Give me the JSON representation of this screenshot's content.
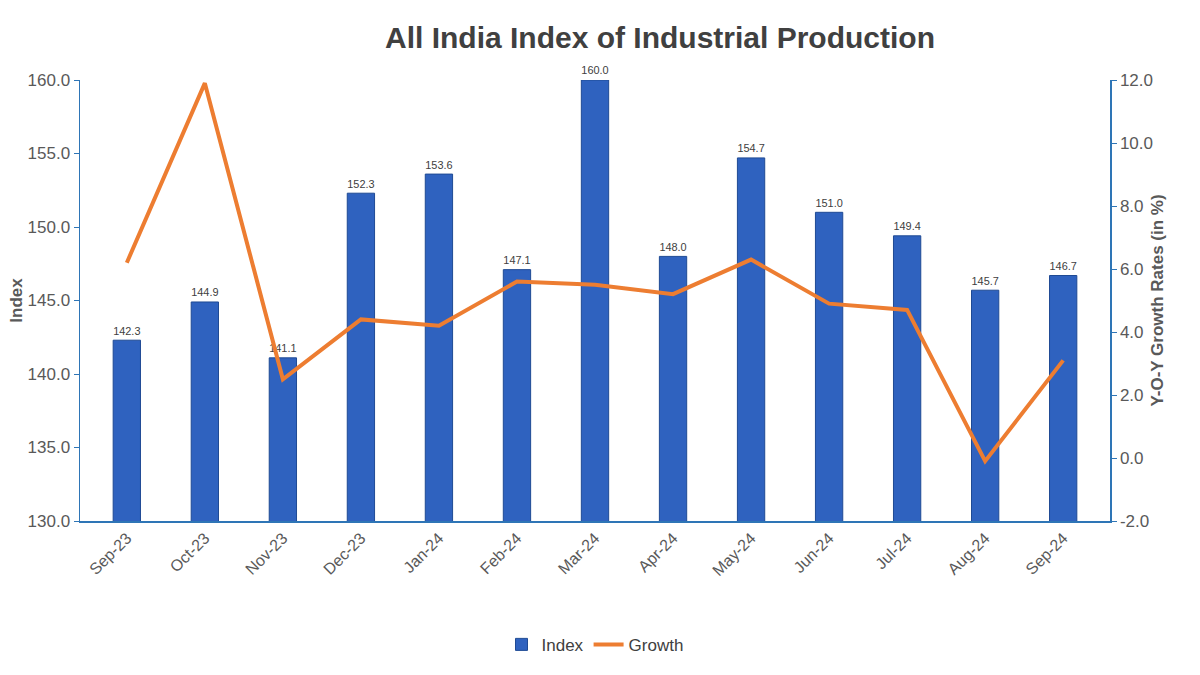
{
  "chart_data": {
    "type": "bar",
    "title": "All India Index of Industrial Production",
    "categories": [
      "Sep-23",
      "Oct-23",
      "Nov-23",
      "Dec-23",
      "Jan-24",
      "Feb-24",
      "Mar-24",
      "Apr-24",
      "May-24",
      "Jun-24",
      "Jul-24",
      "Aug-24",
      "Sep-24"
    ],
    "series": [
      {
        "name": "Index",
        "type": "bar",
        "color": "#2f62bf",
        "data_labels": true,
        "values": [
          142.3,
          144.9,
          141.1,
          152.3,
          153.6,
          147.1,
          160.0,
          148.0,
          154.7,
          151.0,
          149.4,
          145.7,
          146.7
        ],
        "value_labels": [
          "142.3",
          "144.9",
          "141.1",
          "152.3",
          "153.6",
          "147.1",
          "160.0",
          "148.0",
          "154.7",
          "151.0",
          "149.4",
          "145.7",
          "146.7"
        ]
      },
      {
        "name": "Growth",
        "type": "line",
        "color": "#ed7d31",
        "axis": "y2",
        "values": [
          6.2,
          11.9,
          2.5,
          4.4,
          4.2,
          5.6,
          5.5,
          5.2,
          6.3,
          4.9,
          4.7,
          -0.1,
          3.1
        ]
      }
    ],
    "y_label": "Index",
    "y2_label": "Y-O-Y Growth Rates (in %)",
    "ylim": [
      130,
      160
    ],
    "yticks": [
      {
        "value": 130,
        "label": "130.0"
      },
      {
        "value": 135,
        "label": "135.0"
      },
      {
        "value": 140,
        "label": "140.0"
      },
      {
        "value": 145,
        "label": "145.0"
      },
      {
        "value": 150,
        "label": "150.0"
      },
      {
        "value": 155,
        "label": "155.0"
      },
      {
        "value": 160,
        "label": "160.0"
      }
    ],
    "y2lim": [
      -2,
      12
    ],
    "y2ticks": [
      {
        "value": -2,
        "label": "-2.0"
      },
      {
        "value": 0,
        "label": "0.0"
      },
      {
        "value": 2,
        "label": "2.0"
      },
      {
        "value": 4,
        "label": "4.0"
      },
      {
        "value": 6,
        "label": "6.0"
      },
      {
        "value": 8,
        "label": "8.0"
      },
      {
        "value": 10,
        "label": "10.0"
      },
      {
        "value": 12,
        "label": "12.0"
      }
    ],
    "grid": false,
    "legend": "bottom"
  }
}
